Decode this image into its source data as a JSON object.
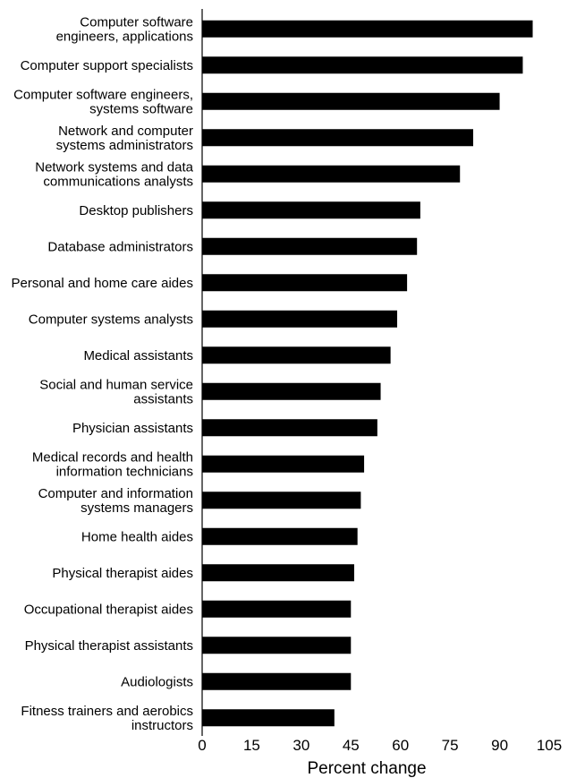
{
  "chart_data": {
    "type": "bar",
    "orientation": "horizontal",
    "categories": [
      "Computer software engineers, applications",
      "Computer support specialists",
      "Computer software engineers, systems software",
      "Network and computer systems administrators",
      "Network systems and data communications analysts",
      "Desktop publishers",
      "Database administrators",
      "Personal and home care aides",
      "Computer systems analysts",
      "Medical assistants",
      "Social and human service assistants",
      "Physician assistants",
      "Medical records and health information technicians",
      "Computer and information systems managers",
      "Home health aides",
      "Physical therapist aides",
      "Occupational therapist aides",
      "Physical therapist assistants",
      "Audiologists",
      "Fitness trainers and aerobics instructors"
    ],
    "category_lines": [
      [
        "Computer software",
        "engineers, applications"
      ],
      [
        "Computer support specialists"
      ],
      [
        "Computer software engineers,",
        "systems software"
      ],
      [
        "Network and computer",
        "systems administrators"
      ],
      [
        "Network systems and data",
        "communications analysts"
      ],
      [
        "Desktop publishers"
      ],
      [
        "Database administrators"
      ],
      [
        "Personal and home care aides"
      ],
      [
        "Computer systems analysts"
      ],
      [
        "Medical assistants"
      ],
      [
        "Social and human service",
        "assistants"
      ],
      [
        "Physician assistants"
      ],
      [
        "Medical records and health",
        "information technicians"
      ],
      [
        "Computer and information",
        "systems managers"
      ],
      [
        "Home health aides"
      ],
      [
        "Physical therapist aides"
      ],
      [
        "Occupational therapist aides"
      ],
      [
        "Physical therapist assistants"
      ],
      [
        "Audiologists"
      ],
      [
        "Fitness trainers and aerobics",
        "instructors"
      ]
    ],
    "values": [
      100,
      97,
      90,
      82,
      78,
      66,
      65,
      62,
      59,
      57,
      54,
      53,
      49,
      48,
      47,
      46,
      45,
      45,
      45,
      40
    ],
    "xlabel": "Percent change",
    "ylabel": "",
    "xlim": [
      0,
      105
    ],
    "xticks": [
      0,
      15,
      30,
      45,
      60,
      75,
      90,
      105
    ],
    "grid": false,
    "bar_color": "#000000"
  }
}
